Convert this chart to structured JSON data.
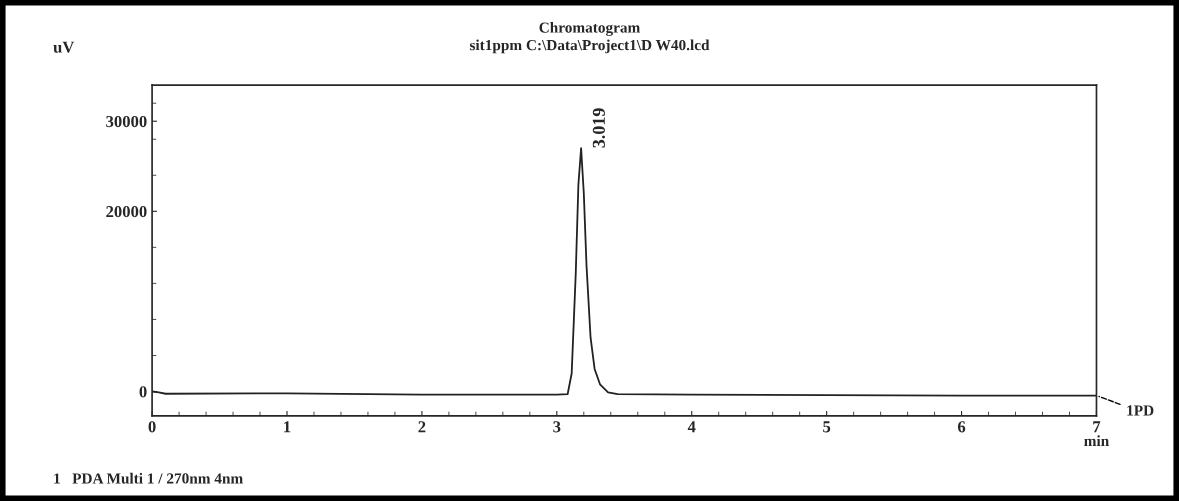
{
  "chart_data": {
    "type": "line",
    "title": "Chromatogram",
    "subtitle": "sit1ppm C:\\Data\\Project1\\D W40.lcd",
    "xlabel": "min",
    "ylabel": "uV",
    "x": [
      0,
      0.05,
      0.1,
      1,
      2,
      3,
      3.08,
      3.11,
      3.14,
      3.16,
      3.18,
      3.2,
      3.22,
      3.25,
      3.28,
      3.32,
      3.38,
      3.45,
      4,
      5,
      6,
      7
    ],
    "series": [
      {
        "color": "#222222",
        "values": [
          0,
          -100,
          -250,
          -200,
          -350,
          -350,
          -300,
          2000,
          13000,
          23000,
          27000,
          22000,
          14000,
          6000,
          2500,
          800,
          -100,
          -300,
          -350,
          -400,
          -450,
          -450
        ]
      }
    ],
    "xlim": [
      0,
      7
    ],
    "xticks": [
      0,
      1,
      2,
      3,
      4,
      5,
      6,
      7
    ],
    "ylim": [
      -2700,
      34000
    ],
    "yticks": [
      0,
      20000,
      30000
    ],
    "grid": false,
    "legend": false,
    "marker": "none",
    "line_style": "solid",
    "annotations": [
      {
        "text": "3.019",
        "x": 3.18,
        "y": 27000
      },
      {
        "text": "1PD",
        "x": 7,
        "y": -450
      },
      "1   PDA Multi 1 / 270nm 4nm"
    ]
  }
}
